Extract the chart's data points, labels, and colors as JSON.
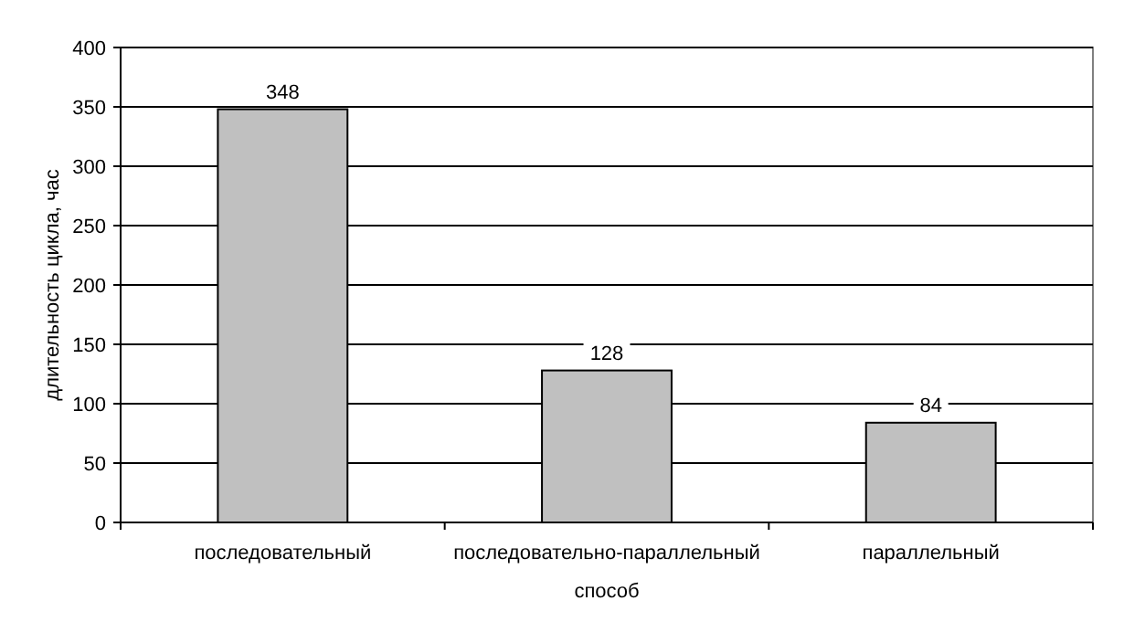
{
  "chart_data": {
    "type": "bar",
    "xlabel": "способ",
    "ylabel": "длительность цикла, час",
    "categories": [
      "последовательный",
      "последовательно-параллельный",
      "параллельный"
    ],
    "values": [
      348,
      128,
      84
    ],
    "color": "#c0c0c0",
    "ylim": [
      0,
      400
    ],
    "yticks": [
      0,
      50,
      100,
      150,
      200,
      250,
      300,
      350,
      400
    ],
    "grid": "y",
    "data_labels": true
  }
}
